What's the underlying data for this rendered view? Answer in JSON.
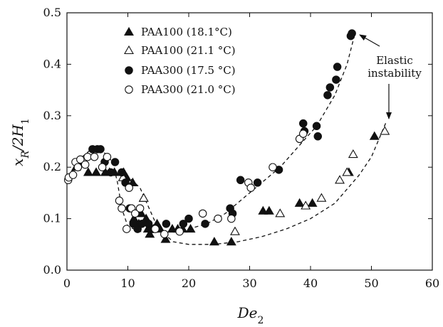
{
  "chart_data": {
    "type": "scatter",
    "xlabel": "De",
    "xlabel_sub": "2",
    "ylabel": "x",
    "ylabel_sub": "R",
    "ylabel_tail": "/2H",
    "ylabel_tail_sub": "1",
    "xlim": [
      0,
      60
    ],
    "ylim": [
      0,
      0.5
    ],
    "x_ticks": [
      0,
      10,
      20,
      30,
      40,
      50,
      60
    ],
    "y_ticks": [
      0.0,
      0.1,
      0.2,
      0.3,
      0.4,
      0.5
    ],
    "x_tick_labels": [
      "0",
      "10",
      "20",
      "30",
      "40",
      "50",
      "60"
    ],
    "y_tick_labels": [
      "0.0",
      "0.1",
      "0.2",
      "0.3",
      "0.4",
      "0.5"
    ],
    "grid": false,
    "legend_position": "top-left",
    "series": [
      {
        "name": "PAA100 (18.1°C)",
        "marker": "triangle-filled",
        "points": [
          [
            1.5,
            0.2
          ],
          [
            2.5,
            0.21
          ],
          [
            3.5,
            0.19
          ],
          [
            4.8,
            0.19
          ],
          [
            6.3,
            0.19
          ],
          [
            7.0,
            0.19
          ],
          [
            7.8,
            0.19
          ],
          [
            9.3,
            0.19
          ],
          [
            9.8,
            0.18
          ],
          [
            10.8,
            0.17
          ],
          [
            11.0,
            0.1
          ],
          [
            11.8,
            0.09
          ],
          [
            12.2,
            0.11
          ],
          [
            12.6,
            0.14
          ],
          [
            13.0,
            0.1
          ],
          [
            13.3,
            0.08
          ],
          [
            13.6,
            0.07
          ],
          [
            14.2,
            0.08
          ],
          [
            14.8,
            0.09
          ],
          [
            15.3,
            0.08
          ],
          [
            16.2,
            0.06
          ],
          [
            17.3,
            0.08
          ],
          [
            18.2,
            0.08
          ],
          [
            19.0,
            0.08
          ],
          [
            20.3,
            0.08
          ],
          [
            24.2,
            0.055
          ],
          [
            27.0,
            0.055
          ],
          [
            32.2,
            0.115
          ],
          [
            33.2,
            0.115
          ],
          [
            38.2,
            0.13
          ],
          [
            40.3,
            0.13
          ],
          [
            46.3,
            0.19
          ],
          [
            50.5,
            0.26
          ]
        ]
      },
      {
        "name": "PAA100 (21.1 °C)",
        "marker": "triangle-open",
        "points": [
          [
            9.2,
            0.18
          ],
          [
            12.6,
            0.14
          ],
          [
            27.6,
            0.075
          ],
          [
            35.0,
            0.11
          ],
          [
            39.2,
            0.125
          ],
          [
            41.8,
            0.14
          ],
          [
            44.8,
            0.175
          ],
          [
            46.0,
            0.19
          ],
          [
            47.0,
            0.225
          ],
          [
            52.2,
            0.27
          ]
        ]
      },
      {
        "name": "PAA300 (17.5 °C)",
        "marker": "circle-filled",
        "points": [
          [
            4.2,
            0.235
          ],
          [
            5.0,
            0.235
          ],
          [
            5.5,
            0.235
          ],
          [
            6.2,
            0.21
          ],
          [
            7.2,
            0.19
          ],
          [
            7.9,
            0.21
          ],
          [
            9.0,
            0.19
          ],
          [
            9.6,
            0.17
          ],
          [
            10.3,
            0.12
          ],
          [
            10.9,
            0.09
          ],
          [
            11.6,
            0.08
          ],
          [
            12.3,
            0.09
          ],
          [
            13.4,
            0.09
          ],
          [
            14.1,
            0.08
          ],
          [
            16.3,
            0.09
          ],
          [
            19.1,
            0.09
          ],
          [
            20.0,
            0.1
          ],
          [
            22.7,
            0.09
          ],
          [
            26.8,
            0.12
          ],
          [
            27.2,
            0.11
          ],
          [
            28.5,
            0.175
          ],
          [
            31.3,
            0.17
          ],
          [
            34.8,
            0.195
          ],
          [
            38.8,
            0.285
          ],
          [
            39.0,
            0.27
          ],
          [
            41.0,
            0.28
          ],
          [
            41.2,
            0.26
          ],
          [
            42.8,
            0.34
          ],
          [
            43.2,
            0.355
          ],
          [
            44.2,
            0.37
          ],
          [
            44.4,
            0.395
          ],
          [
            46.6,
            0.455
          ],
          [
            46.8,
            0.46
          ]
        ]
      },
      {
        "name": "PAA300 (21.0 °C)",
        "marker": "circle-open",
        "points": [
          [
            0.2,
            0.175
          ],
          [
            0.3,
            0.18
          ],
          [
            1.0,
            0.185
          ],
          [
            1.4,
            0.21
          ],
          [
            1.8,
            0.2
          ],
          [
            2.2,
            0.215
          ],
          [
            3.0,
            0.205
          ],
          [
            3.4,
            0.22
          ],
          [
            4.5,
            0.22
          ],
          [
            5.8,
            0.2
          ],
          [
            6.6,
            0.22
          ],
          [
            8.6,
            0.135
          ],
          [
            9.0,
            0.12
          ],
          [
            9.8,
            0.08
          ],
          [
            10.2,
            0.16
          ],
          [
            10.6,
            0.12
          ],
          [
            11.2,
            0.11
          ],
          [
            12.0,
            0.12
          ],
          [
            14.5,
            0.08
          ],
          [
            16.0,
            0.07
          ],
          [
            18.5,
            0.075
          ],
          [
            22.3,
            0.11
          ],
          [
            24.8,
            0.1
          ],
          [
            27.0,
            0.1
          ],
          [
            29.8,
            0.17
          ],
          [
            30.2,
            0.16
          ],
          [
            33.8,
            0.2
          ],
          [
            38.2,
            0.255
          ],
          [
            38.8,
            0.265
          ]
        ]
      }
    ],
    "trend_lines": [
      {
        "style": "dashed",
        "points": [
          [
            8.8,
            0.19
          ],
          [
            9.8,
            0.185
          ],
          [
            12.0,
            0.16
          ],
          [
            13.5,
            0.12
          ],
          [
            15.0,
            0.08
          ],
          [
            17.5,
            0.055
          ],
          [
            20.0,
            0.05
          ],
          [
            24.0,
            0.05
          ],
          [
            28.0,
            0.055
          ],
          [
            32.0,
            0.065
          ],
          [
            36.0,
            0.08
          ],
          [
            40.0,
            0.1
          ],
          [
            44.0,
            0.13
          ],
          [
            48.0,
            0.185
          ],
          [
            50.0,
            0.22
          ],
          [
            52.5,
            0.29
          ]
        ]
      },
      {
        "style": "dashed",
        "points": [
          [
            0.0,
            0.18
          ],
          [
            1.0,
            0.195
          ],
          [
            2.5,
            0.22
          ],
          [
            4.0,
            0.235
          ],
          [
            6.0,
            0.23
          ],
          [
            7.5,
            0.21
          ],
          [
            8.3,
            0.17
          ],
          [
            9.0,
            0.12
          ],
          [
            10.0,
            0.085
          ],
          [
            12.0,
            0.075
          ],
          [
            14.0,
            0.075
          ],
          [
            16.0,
            0.075
          ],
          [
            18.0,
            0.075
          ],
          [
            20.0,
            0.08
          ],
          [
            23.0,
            0.09
          ],
          [
            26.0,
            0.11
          ],
          [
            29.0,
            0.14
          ],
          [
            32.0,
            0.17
          ],
          [
            35.0,
            0.2
          ],
          [
            38.0,
            0.24
          ],
          [
            41.0,
            0.28
          ],
          [
            44.0,
            0.34
          ],
          [
            46.0,
            0.4
          ],
          [
            47.3,
            0.46
          ]
        ]
      }
    ],
    "annotation": {
      "lines": [
        "Elastic",
        "instability"
      ],
      "arrow_targets": [
        [
          47.3,
          0.46
        ],
        [
          52.5,
          0.29
        ]
      ]
    },
    "colors": {
      "marker": "#111111",
      "axis": "#111111",
      "background": "#ffffff"
    }
  }
}
